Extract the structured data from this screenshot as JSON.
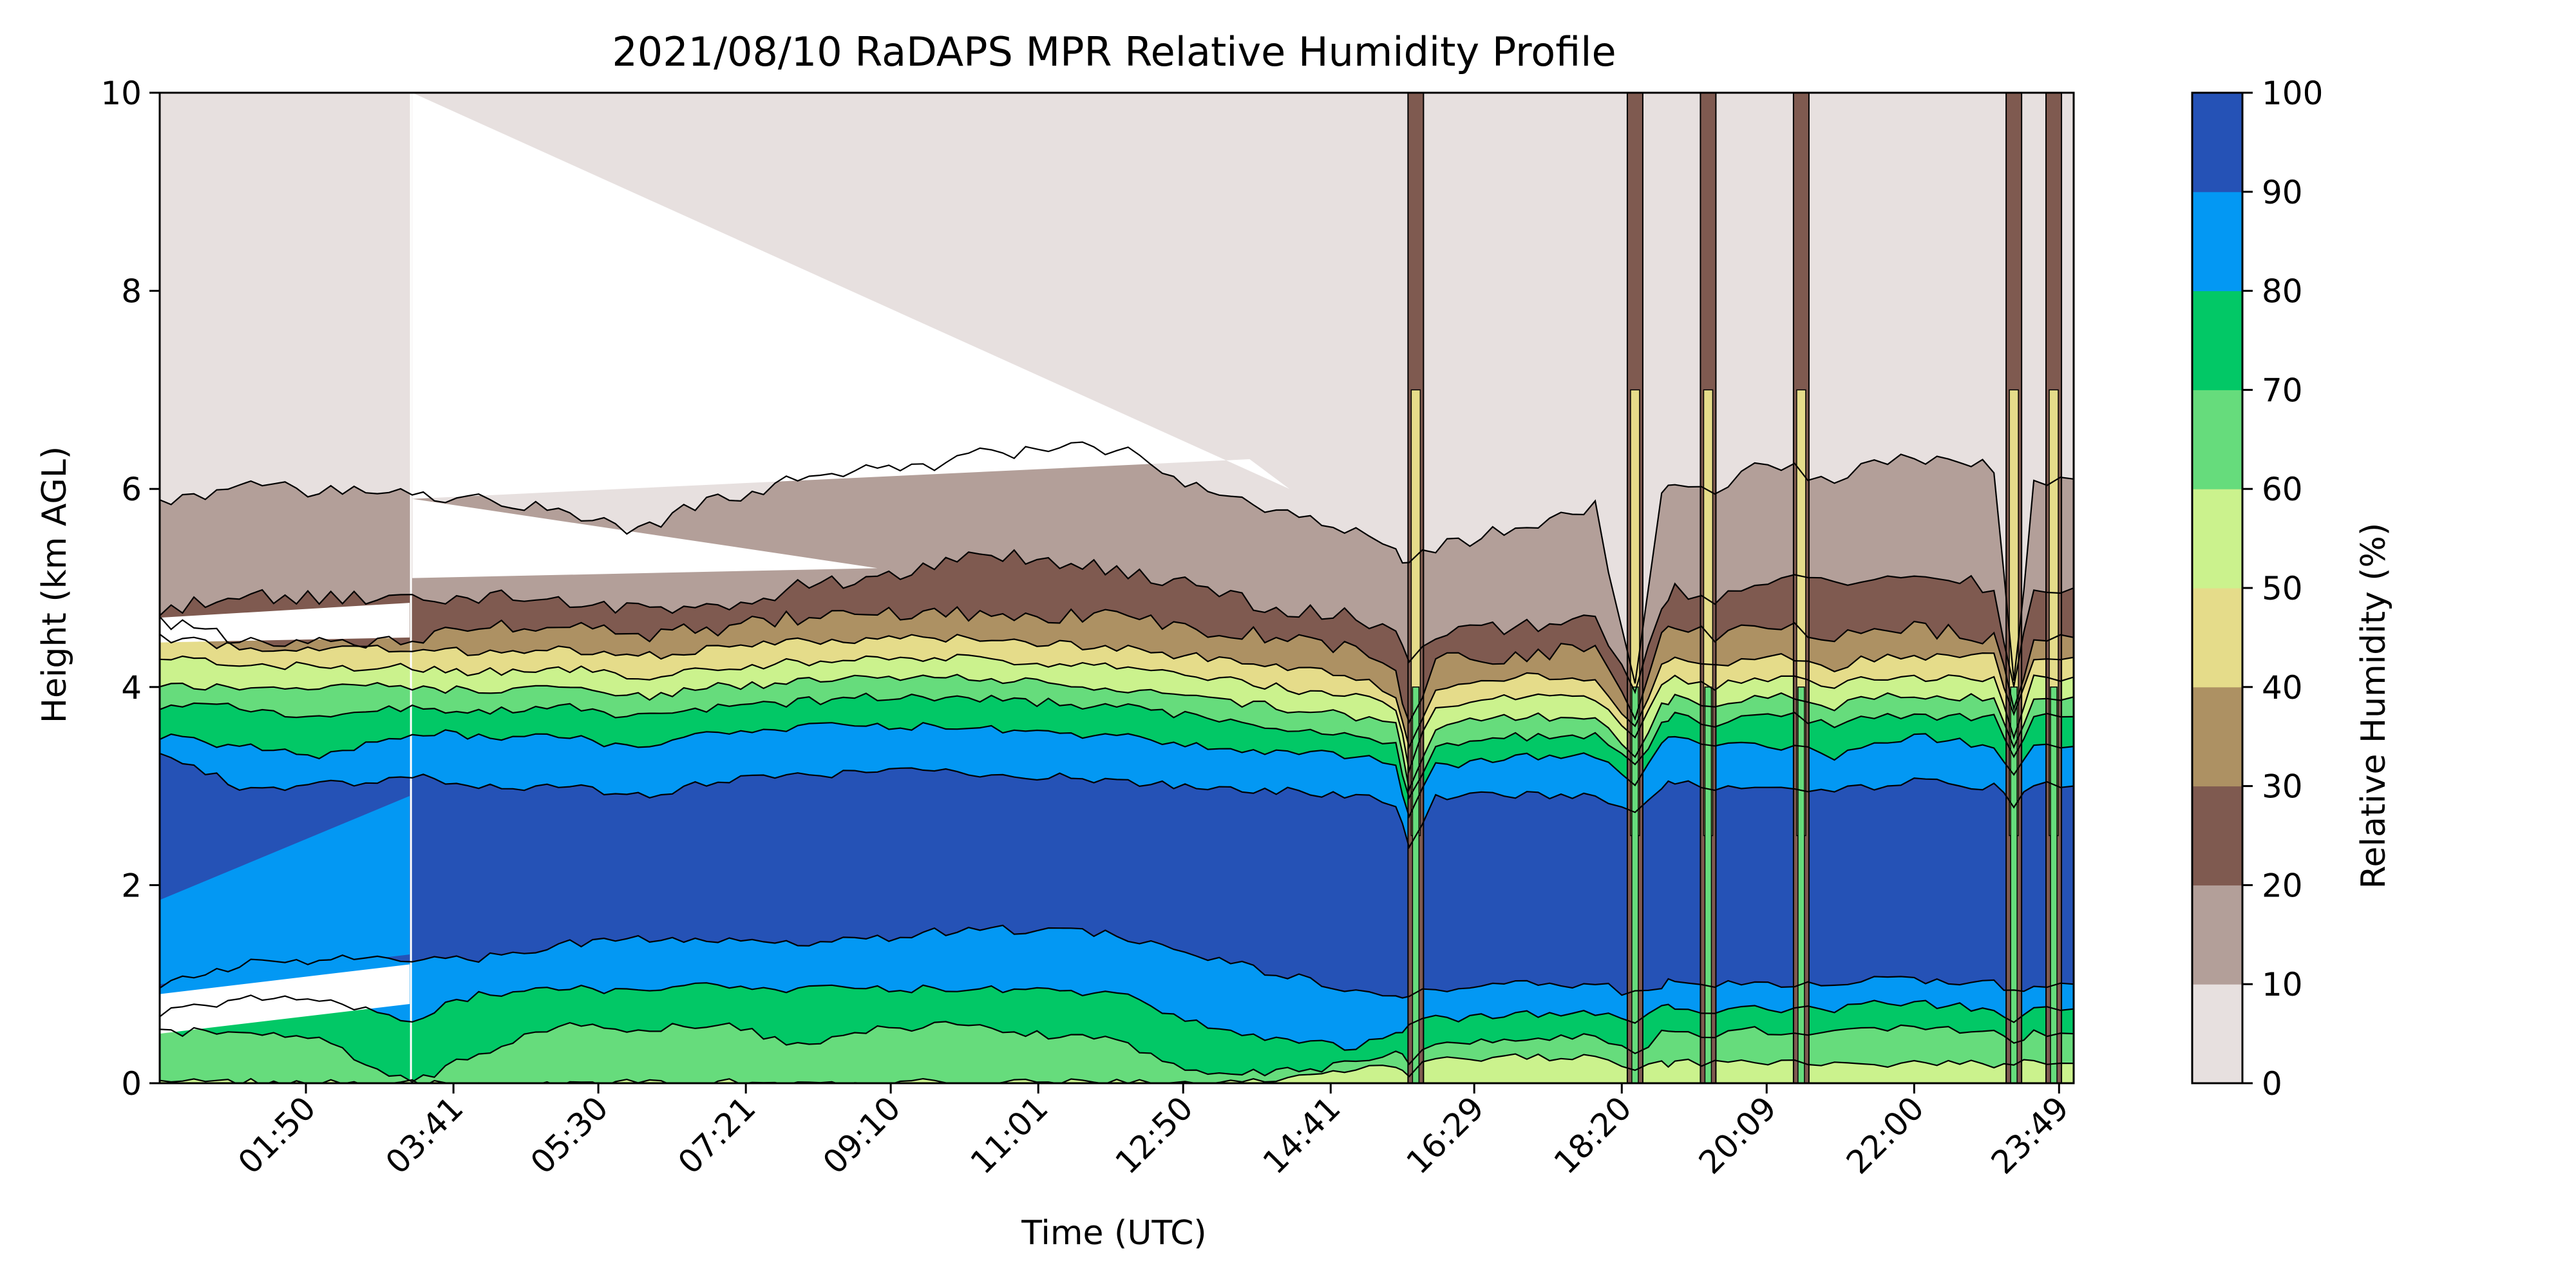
{
  "chart_data": {
    "type": "contourf",
    "title": "2021/08/10 RaDAPS MPR Relative Humidity Profile",
    "xlabel": "Time (UTC)",
    "ylabel": "Height (km AGL)",
    "colorbar_label": "Relative Humidity (%)",
    "xlim": [
      "00:00",
      "24:00"
    ],
    "ylim": [
      0,
      10
    ],
    "x_ticks": [
      "01:50",
      "03:41",
      "05:30",
      "07:21",
      "09:10",
      "11:01",
      "12:50",
      "14:41",
      "16:29",
      "18:20",
      "20:09",
      "22:00",
      "23:49"
    ],
    "y_ticks": [
      "0",
      "2",
      "4",
      "6",
      "8",
      "10"
    ],
    "levels": [
      0,
      10,
      20,
      30,
      40,
      50,
      60,
      70,
      80,
      90,
      100
    ],
    "level_labels": [
      "0",
      "10",
      "20",
      "30",
      "40",
      "50",
      "60",
      "70",
      "80",
      "90",
      "100"
    ],
    "level_colors": [
      "#e7e0df",
      "#b39f99",
      "#7f5a50",
      "#ad9163",
      "#e5dc8a",
      "#cbf28d",
      "#66dc7c",
      "#02c866",
      "#0398f3",
      "#2552b6"
    ],
    "data_gap": [
      "00:00",
      "03:10"
    ],
    "times": [
      "00:00",
      "01:00",
      "02:00",
      "03:10",
      "04:00",
      "05:00",
      "06:00",
      "07:00",
      "08:00",
      "09:00",
      "10:00",
      "11:00",
      "12:00",
      "13:00",
      "14:00",
      "15:00",
      "15:30",
      "15:40",
      "16:00",
      "17:00",
      "18:00",
      "18:30",
      "18:50",
      "19:00",
      "19:30",
      "20:00",
      "20:30",
      "21:00",
      "21:30",
      "22:00",
      "23:00",
      "23:15",
      "23:30",
      "24:00"
    ],
    "contour_heights_km": [
      {
        "level": 10,
        "values": [
          5.9,
          6.0,
          6.0,
          5.95,
          5.9,
          5.8,
          5.6,
          5.9,
          6.1,
          6.2,
          6.3,
          6.4,
          6.4,
          6.0,
          5.8,
          5.6,
          5.4,
          5.2,
          5.4,
          5.6,
          5.8,
          4.0,
          5.9,
          6.1,
          6.0,
          6.2,
          6.2,
          6.1,
          6.3,
          6.3,
          6.2,
          4.0,
          6.1,
          6.1
        ]
      },
      {
        "level": 20,
        "values": [
          4.8,
          4.9,
          4.9,
          4.9,
          4.9,
          4.9,
          4.8,
          4.8,
          5.0,
          5.1,
          5.3,
          5.3,
          5.2,
          5.0,
          4.8,
          4.7,
          4.6,
          4.3,
          4.5,
          4.6,
          4.7,
          4.0,
          4.8,
          5.0,
          4.9,
          5.1,
          5.1,
          5.0,
          5.1,
          5.2,
          5.0,
          4.0,
          5.0,
          5.0
        ]
      },
      {
        "level": 30,
        "values": [
          4.7,
          4.45,
          4.45,
          4.5,
          4.6,
          4.6,
          4.5,
          4.6,
          4.7,
          4.75,
          4.75,
          4.7,
          4.7,
          4.6,
          4.5,
          4.4,
          4.2,
          3.6,
          4.3,
          4.3,
          4.4,
          3.7,
          4.5,
          4.6,
          4.5,
          4.6,
          4.6,
          4.5,
          4.6,
          4.6,
          4.5,
          3.8,
          4.5,
          4.5
        ]
      },
      {
        "level": 40,
        "values": [
          4.5,
          4.4,
          4.4,
          4.4,
          4.35,
          4.4,
          4.3,
          4.4,
          4.45,
          4.5,
          4.5,
          4.45,
          4.4,
          4.3,
          4.2,
          4.1,
          3.9,
          3.4,
          4.0,
          4.1,
          4.1,
          3.6,
          4.2,
          4.3,
          4.2,
          4.3,
          4.3,
          4.2,
          4.3,
          4.3,
          4.3,
          3.7,
          4.3,
          4.3
        ]
      },
      {
        "level": 50,
        "values": [
          4.3,
          4.25,
          4.2,
          4.2,
          4.15,
          4.2,
          4.1,
          4.2,
          4.25,
          4.3,
          4.3,
          4.25,
          4.2,
          4.1,
          4.0,
          3.9,
          3.8,
          3.2,
          3.8,
          3.9,
          3.9,
          3.5,
          4.0,
          4.1,
          4.0,
          4.1,
          4.1,
          4.0,
          4.1,
          4.1,
          4.1,
          3.5,
          4.1,
          4.1
        ]
      },
      {
        "level": 60,
        "values": [
          4.0,
          4.0,
          4.0,
          4.0,
          3.95,
          4.0,
          3.9,
          4.0,
          4.05,
          4.1,
          4.1,
          4.05,
          4.0,
          3.9,
          3.8,
          3.7,
          3.6,
          3.0,
          3.6,
          3.7,
          3.7,
          3.3,
          3.8,
          3.9,
          3.8,
          3.9,
          3.9,
          3.8,
          3.9,
          3.9,
          3.9,
          3.4,
          3.9,
          3.9
        ]
      },
      {
        "level": 70,
        "values": [
          3.8,
          3.8,
          3.7,
          3.8,
          3.75,
          3.8,
          3.7,
          3.8,
          3.85,
          3.9,
          3.9,
          3.85,
          3.8,
          3.7,
          3.6,
          3.5,
          3.4,
          2.9,
          3.4,
          3.5,
          3.5,
          3.2,
          3.6,
          3.7,
          3.6,
          3.7,
          3.7,
          3.6,
          3.7,
          3.7,
          3.7,
          3.3,
          3.7,
          3.7
        ]
      },
      {
        "level": 80,
        "values": [
          3.5,
          3.4,
          3.3,
          3.55,
          3.5,
          3.5,
          3.4,
          3.55,
          3.6,
          3.6,
          3.6,
          3.55,
          3.5,
          3.4,
          3.35,
          3.3,
          3.2,
          2.7,
          3.2,
          3.3,
          3.3,
          3.0,
          3.4,
          3.5,
          3.4,
          3.4,
          3.4,
          3.3,
          3.4,
          3.5,
          3.4,
          3.1,
          3.4,
          3.4
        ]
      },
      {
        "level": 90,
        "values": [
          3.3,
          3.0,
          3.0,
          3.1,
          3.0,
          3.0,
          2.9,
          3.05,
          3.1,
          3.15,
          3.15,
          3.1,
          3.05,
          3.0,
          2.95,
          2.9,
          2.8,
          2.4,
          2.9,
          2.9,
          2.9,
          2.7,
          3.0,
          3.05,
          3.0,
          3.0,
          3.0,
          2.95,
          3.0,
          3.05,
          3.0,
          2.8,
          3.0,
          3.0
        ]
      },
      {
        "level": 90,
        "lower_edge": true,
        "values": [
          1.0,
          1.2,
          1.25,
          1.25,
          1.25,
          1.4,
          1.45,
          1.45,
          1.4,
          1.45,
          1.55,
          1.55,
          1.5,
          1.3,
          1.1,
          0.95,
          0.9,
          0.9,
          0.95,
          1.0,
          1.0,
          0.9,
          1.0,
          1.05,
          1.0,
          1.0,
          1.0,
          1.0,
          1.05,
          1.05,
          1.0,
          0.9,
          1.0,
          1.0
        ]
      },
      {
        "level": 80,
        "lower_edge": true,
        "values": [
          0.7,
          0.85,
          0.85,
          0.65,
          0.9,
          0.95,
          0.95,
          1.0,
          0.95,
          0.95,
          0.95,
          0.95,
          0.9,
          0.6,
          0.45,
          0.35,
          0.5,
          0.6,
          0.65,
          0.7,
          0.7,
          0.6,
          0.75,
          0.75,
          0.7,
          0.75,
          0.75,
          0.75,
          0.8,
          0.8,
          0.75,
          0.6,
          0.75,
          0.75
        ]
      },
      {
        "level": 70,
        "lower_edge": true,
        "values": [
          0.5,
          0.55,
          0.45,
          0.0,
          0.3,
          0.6,
          0.55,
          0.6,
          0.4,
          0.55,
          0.6,
          0.5,
          0.45,
          0.1,
          0.1,
          0.2,
          0.3,
          0.2,
          0.4,
          0.45,
          0.5,
          0.3,
          0.5,
          0.5,
          0.5,
          0.55,
          0.5,
          0.5,
          0.55,
          0.55,
          0.5,
          0.4,
          0.5,
          0.5
        ]
      },
      {
        "level": 60,
        "lower_edge": true,
        "values": [
          0.0,
          0.0,
          0.0,
          0.0,
          0.0,
          0.0,
          0.0,
          0.0,
          0.0,
          0.0,
          0.0,
          0.0,
          0.0,
          0.0,
          0.05,
          0.15,
          0.2,
          0.1,
          0.25,
          0.25,
          0.25,
          0.1,
          0.2,
          0.2,
          0.2,
          0.2,
          0.2,
          0.2,
          0.2,
          0.2,
          0.2,
          0.2,
          0.2,
          0.2
        ]
      }
    ],
    "moist_spikes_utc": [
      "15:45",
      "18:30",
      "19:25",
      "20:35",
      "23:15",
      "23:45"
    ],
    "grid": false,
    "colorbar_position": "right"
  }
}
